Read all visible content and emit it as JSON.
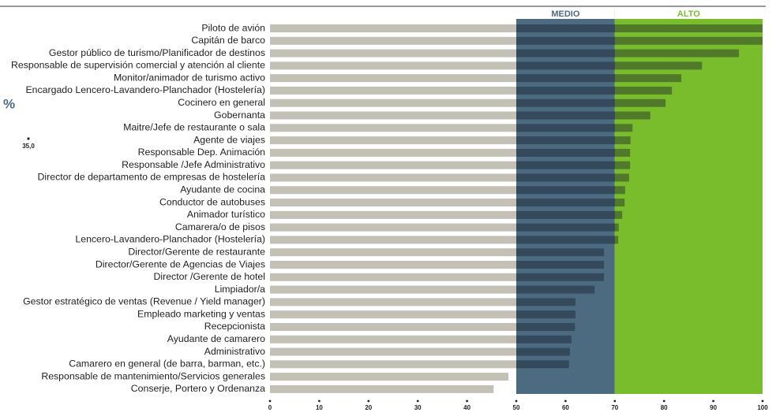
{
  "chart_data": {
    "type": "barh",
    "categories": [
      "Piloto de avión",
      "Capitán de barco",
      "Gestor público de turismo/Planificador de destinos",
      "Responsable de supervisión comercial y atención al cliente",
      "Monitor/animador de turismo activo",
      "Encargado Lencero-Lavandero-Planchador (Hostelería)",
      "Cocinero en general",
      "Gobernanta",
      "Maitre/Jefe de restaurante o sala",
      "Agente de viajes",
      "Responsable Dep. Animación",
      "Responsable /Jefe Administrativo",
      "Director de departamento de empresas de hostelería",
      "Ayudante de cocina",
      "Conductor de autobuses",
      "Animador turístico",
      "Camarera/o de pisos",
      "Lencero-Lavandero-Planchador (Hostelería)",
      "Director/Gerente de restaurante",
      "Director/Gerente de Agencias de Viajes",
      "Director /Gerente de hotel",
      "Limpiador/a",
      "Gestor estratégico de ventas (Revenue / Yield manager)",
      "Empleado marketing y ventas",
      "Recepcionista",
      "Ayudante de camarero",
      "Administrativo",
      "Camarero en general (de barra, barman, etc.)",
      "Responsable de mantenimiento/Servicios generales",
      "Conserje, Portero y Ordenanza"
    ],
    "values": [
      100,
      100,
      95.2,
      87.7,
      83.5,
      81.6,
      80.3,
      77.2,
      73.6,
      73.2,
      73.1,
      73.1,
      72.9,
      72.1,
      72.0,
      71.5,
      70.8,
      70.7,
      67.8,
      67.8,
      67.8,
      65.9,
      62.0,
      62.0,
      61.9,
      61.2,
      60.9,
      60.7,
      48.4,
      45.4
    ],
    "xlim": [
      0,
      100
    ],
    "xticks": [
      0,
      10,
      20,
      30,
      40,
      50,
      60,
      70,
      80,
      90,
      100
    ],
    "bands": [
      {
        "label": "MEDIO",
        "from": 50,
        "to": 70,
        "color": "#4d6b80",
        "label_color": "#4d6b80",
        "bar_color": "#34495b"
      },
      {
        "label": "ALTO",
        "from": 70,
        "to": 100,
        "color": "#79bd2d",
        "label_color": "#79bd2d",
        "bar_color": "#507a2a"
      }
    ],
    "bar_color": "#c3c0b6",
    "annotations": [
      "%",
      "35,0"
    ]
  }
}
